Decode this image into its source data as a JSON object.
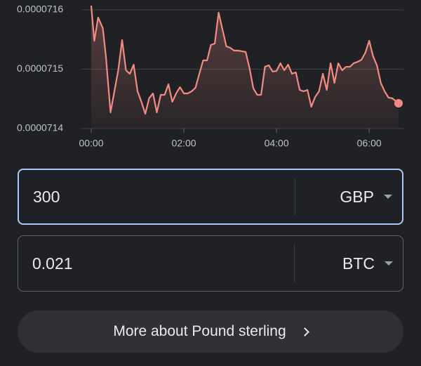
{
  "chart_data": {
    "type": "line",
    "x": [
      0,
      4,
      9,
      15,
      19,
      25,
      30,
      35,
      40,
      45,
      50,
      55,
      60,
      65,
      70,
      75,
      80,
      85,
      90,
      95,
      100,
      105,
      110,
      115,
      120,
      125,
      130,
      135,
      140,
      145,
      150,
      155,
      160,
      165,
      170,
      175,
      180,
      185,
      190,
      195,
      200,
      205,
      210,
      215,
      220,
      225,
      230,
      235,
      240,
      245,
      250,
      255,
      260,
      265,
      270,
      275,
      280,
      285,
      290,
      295,
      300,
      305,
      310,
      315,
      320,
      325,
      330,
      335,
      340,
      345,
      350,
      355,
      360,
      365,
      370,
      375,
      380,
      385,
      390,
      398
    ],
    "series": [
      {
        "color": "#f28b82",
        "values": [
          7.16071e-05,
          7.15479e-05,
          7.1587e-05,
          7.15692e-05,
          7.15219e-05,
          7.14272e-05,
          7.14627e-05,
          7.14982e-05,
          7.15491e-05,
          7.14982e-05,
          7.14923e-05,
          7.15077e-05,
          7.14627e-05,
          7.1445e-05,
          7.14249e-05,
          7.14509e-05,
          7.14592e-05,
          7.14272e-05,
          7.14568e-05,
          7.14568e-05,
          7.14746e-05,
          7.1445e-05,
          7.14592e-05,
          7.14698e-05,
          7.14592e-05,
          7.14592e-05,
          7.14627e-05,
          7.14686e-05,
          7.14923e-05,
          7.15148e-05,
          7.15148e-05,
          7.15408e-05,
          7.15432e-05,
          7.15953e-05,
          7.15669e-05,
          7.15385e-05,
          7.15361e-05,
          7.15314e-05,
          7.15314e-05,
          7.15302e-05,
          7.1529e-05,
          7.15018e-05,
          7.14675e-05,
          7.14568e-05,
          7.14568e-05,
          7.15041e-05,
          7.15065e-05,
          7.14959e-05,
          7.1497e-05,
          7.15101e-05,
          7.14982e-05,
          7.15077e-05,
          7.14923e-05,
          7.14947e-05,
          7.14651e-05,
          7.14627e-05,
          7.14651e-05,
          7.14367e-05,
          7.14533e-05,
          7.14627e-05,
          7.14923e-05,
          7.14651e-05,
          7.15101e-05,
          7.14769e-05,
          7.15101e-05,
          7.14982e-05,
          7.15041e-05,
          7.15041e-05,
          7.15101e-05,
          7.15124e-05,
          7.1516e-05,
          7.15278e-05,
          7.15479e-05,
          7.15219e-05,
          7.15065e-05,
          7.14769e-05,
          7.14627e-05,
          7.14521e-05,
          7.14509e-05,
          7.14426e-05
        ]
      }
    ],
    "xlim": [
      0,
      398
    ],
    "xticks": [
      {
        "value": 0,
        "label": "00:00"
      },
      {
        "value": 120,
        "label": "02:00"
      },
      {
        "value": 240,
        "label": "04:00"
      },
      {
        "value": 360,
        "label": "06:00"
      }
    ],
    "ylim": [
      7.14e-05,
      7.16e-05
    ],
    "yticks": [
      {
        "value": 7.14e-05,
        "label": "0.0000714"
      },
      {
        "value": 7.15e-05,
        "label": "0.0000715"
      },
      {
        "value": 7.16e-05,
        "label": "0.0000716"
      }
    ],
    "grid": true
  },
  "converter": {
    "from": {
      "amount": "300",
      "currency": "GBP"
    },
    "to": {
      "amount": "0.021",
      "currency": "BTC"
    }
  },
  "button": {
    "label": "More about Pound sterling"
  }
}
